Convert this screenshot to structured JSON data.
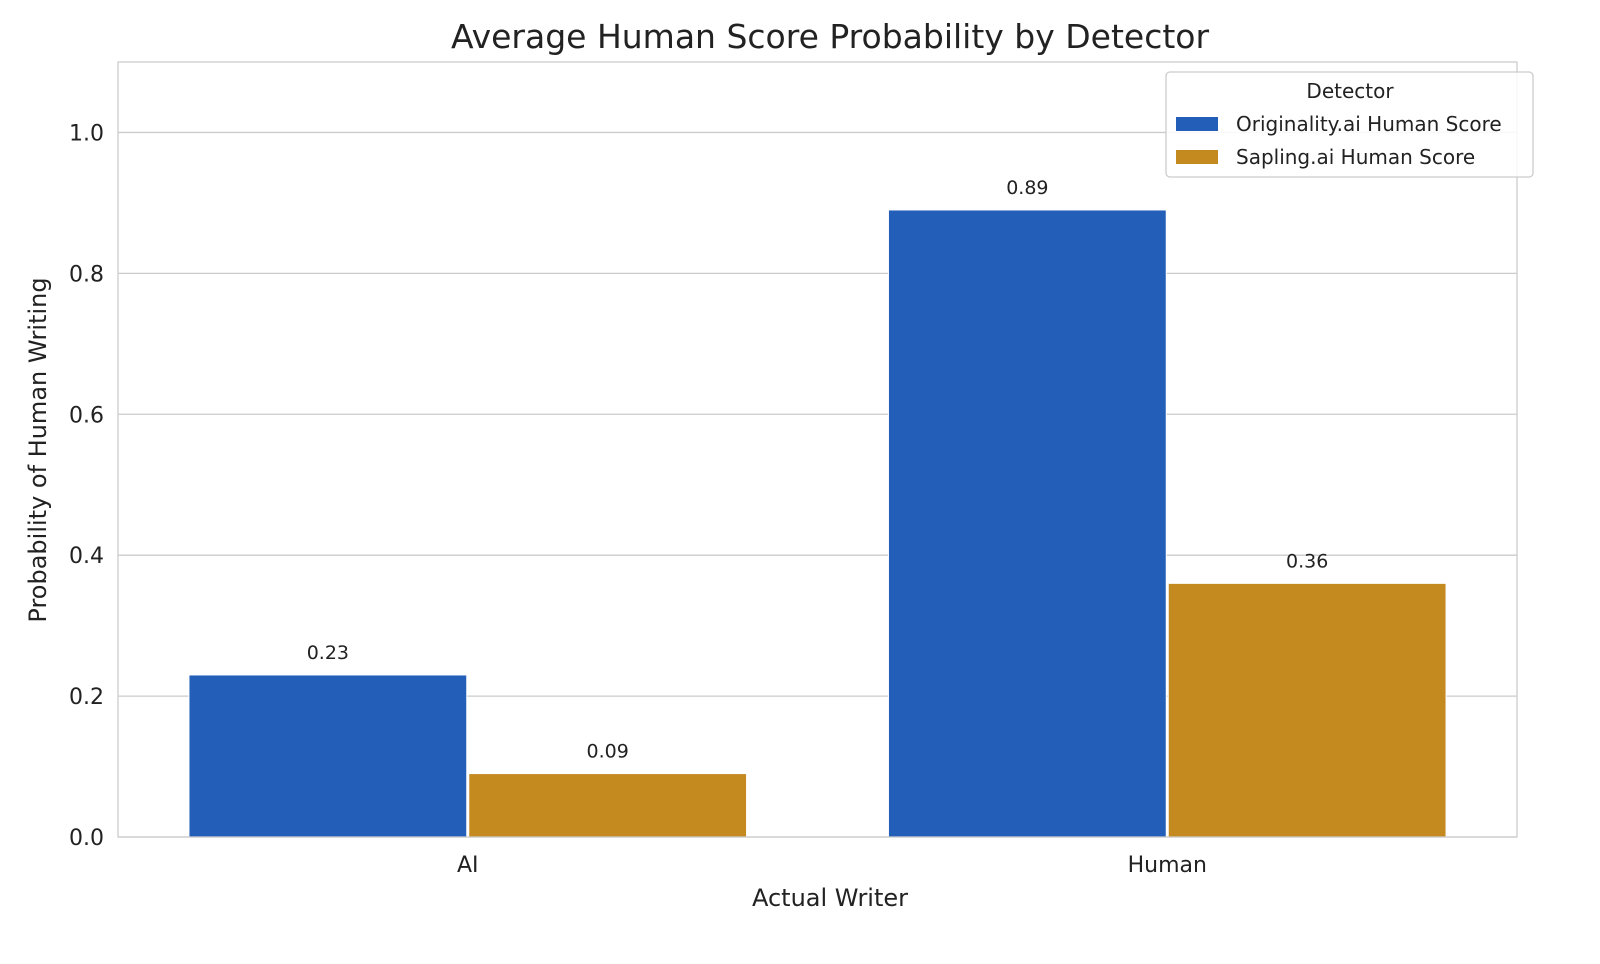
{
  "chart_data": {
    "type": "bar",
    "title": "Average Human Score Probability by Detector",
    "xlabel": "Actual Writer",
    "ylabel": "Probability of Human Writing",
    "categories": [
      "AI",
      "Human"
    ],
    "series": [
      {
        "name": "Originality.ai Human Score",
        "values": [
          0.23,
          0.89
        ],
        "labels": [
          "0.23",
          "0.89"
        ],
        "color": "#235fb8"
      },
      {
        "name": "Sapling.ai Human Score",
        "values": [
          0.09,
          0.36
        ],
        "labels": [
          "0.09",
          "0.36"
        ],
        "color": "#c4891f"
      }
    ],
    "ylim": [
      0,
      1.1
    ],
    "yticks": [
      "0.0",
      "0.2",
      "0.4",
      "0.6",
      "0.8",
      "1.0"
    ],
    "grid": "horizontal",
    "legend": {
      "title": "Detector",
      "position": "top-right"
    }
  }
}
